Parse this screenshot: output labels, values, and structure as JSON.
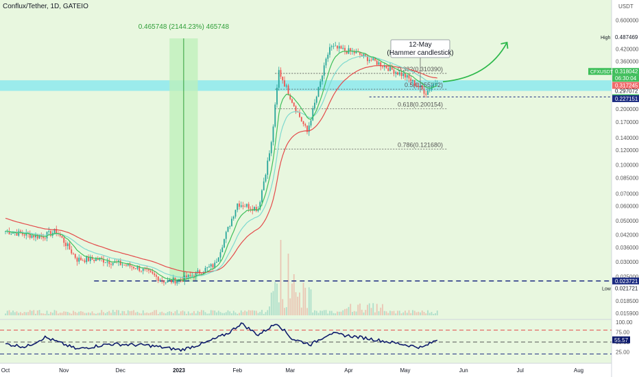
{
  "title": "Conflux/Tether, 1D, GATEIO",
  "currency": "USDT",
  "colors": {
    "up": "#26a69a",
    "down": "#ef5350",
    "uptrend_fill": "#e8f7df",
    "band": "#8de9ee",
    "ema_red": "#e44a4a",
    "ema_green": "#3fbf5b",
    "ema_teal": "#7ed9cf",
    "rsi_line": "#0d1a6b",
    "arrow": "#2db84b",
    "annotation_green": "#2e9e38",
    "fib": "#555555"
  },
  "chart_data": {
    "type": "candlestick",
    "yscale": "log",
    "ylim": [
      0.0155,
      0.72
    ],
    "y_ticks": [
      "0.600000",
      "0.420000",
      "0.360000",
      "0.300000",
      "0.200000",
      "0.170000",
      "0.140000",
      "0.120000",
      "0.100000",
      "0.085000",
      "0.070000",
      "0.060000",
      "0.050000",
      "0.042000",
      "0.036000",
      "0.030000",
      "0.025000",
      "0.018500",
      "0.015900"
    ],
    "x_ticks": [
      "Oct",
      "Nov",
      "Dec",
      "2023",
      "Feb",
      "Mar",
      "Apr",
      "May",
      "Jun",
      "Jul",
      "Aug"
    ],
    "price_anchors": [
      {
        "date": "Oct 1",
        "price": 0.044
      },
      {
        "date": "Oct 20",
        "price": 0.041
      },
      {
        "date": "Oct 28",
        "price": 0.044
      },
      {
        "date": "Nov 8",
        "price": 0.031
      },
      {
        "date": "Nov 20",
        "price": 0.031
      },
      {
        "date": "Dec 10",
        "price": 0.028
      },
      {
        "date": "Dec 25",
        "price": 0.0235
      },
      {
        "date": "Jan 5",
        "price": 0.0245
      },
      {
        "date": "Jan 20",
        "price": 0.029
      },
      {
        "date": "Feb 1",
        "price": 0.062
      },
      {
        "date": "Feb 12",
        "price": 0.058
      },
      {
        "date": "Feb 19",
        "price": 0.13
      },
      {
        "date": "Feb 23",
        "price": 0.32
      },
      {
        "date": "Mar 3",
        "price": 0.21
      },
      {
        "date": "Mar 10",
        "price": 0.15
      },
      {
        "date": "Mar 22",
        "price": 0.43
      },
      {
        "date": "Apr 5",
        "price": 0.4
      },
      {
        "date": "Apr 20",
        "price": 0.34
      },
      {
        "date": "May 1",
        "price": 0.3
      },
      {
        "date": "May 12",
        "price": 0.245
      },
      {
        "date": "May 18",
        "price": 0.286
      }
    ],
    "high": "0.487469",
    "low": "0.021721",
    "measure_label": "0.465748 (2144.23%) 465748",
    "annotation": {
      "date": "12-May",
      "text": "Hammer candlestick"
    },
    "fib_levels": [
      {
        "label": "0.382(0.310390)",
        "price": 0.31039
      },
      {
        "label": "0.5(0.255272)",
        "price": 0.255272
      },
      {
        "label": "0.618(0.200154)",
        "price": 0.200154
      },
      {
        "label": "0.786(0.121680)",
        "price": 0.12168
      }
    ],
    "price_labels": {
      "high_label": "High",
      "high_value": "0.487469",
      "symbol": "CFXUSDT",
      "current": "0.318042",
      "timer": "06:30:04",
      "red_value": "0.317245",
      "level_1": "0.297072",
      "green_value": "0.296315",
      "dark_value": "0.227151",
      "support": "0.023721",
      "low_label": "Low",
      "low_value": "0.021721"
    },
    "support_level": 0.023721,
    "band_range": [
      0.25,
      0.285
    ],
    "rsi": {
      "ticks": [
        "100.00",
        "75.00",
        "50.00",
        "25.00"
      ],
      "upper": 80,
      "lower": 20,
      "mid": 50,
      "value_label": "55.57",
      "anchors": [
        {
          "date": "Oct 1",
          "v": 45
        },
        {
          "date": "Oct 12",
          "v": 38
        },
        {
          "date": "Oct 22",
          "v": 62
        },
        {
          "date": "Nov 8",
          "v": 32
        },
        {
          "date": "Nov 25",
          "v": 45
        },
        {
          "date": "Dec 15",
          "v": 42
        },
        {
          "date": "Jan 2",
          "v": 30
        },
        {
          "date": "Jan 15",
          "v": 48
        },
        {
          "date": "Jan 27",
          "v": 72
        },
        {
          "date": "Feb 3",
          "v": 97
        },
        {
          "date": "Feb 12",
          "v": 68
        },
        {
          "date": "Feb 22",
          "v": 98
        },
        {
          "date": "Mar 2",
          "v": 58
        },
        {
          "date": "Mar 12",
          "v": 44
        },
        {
          "date": "Mar 22",
          "v": 72
        },
        {
          "date": "Apr 10",
          "v": 60
        },
        {
          "date": "Apr 25",
          "v": 48
        },
        {
          "date": "May 10",
          "v": 36
        },
        {
          "date": "May 18",
          "v": 56
        }
      ]
    }
  }
}
